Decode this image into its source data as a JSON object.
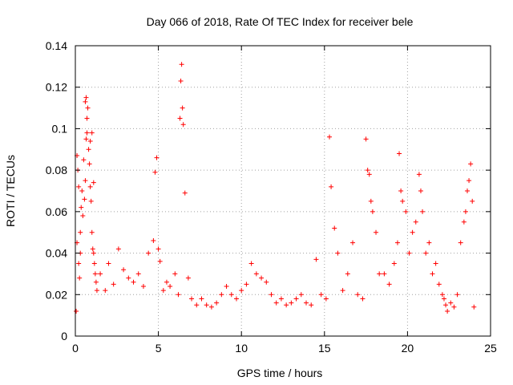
{
  "chart_data": {
    "type": "scatter",
    "title": "Day 066 of 2018, Rate Of TEC Index for receiver bele",
    "xlabel": "GPS time / hours",
    "ylabel": "ROTI / TECUs",
    "xlim": [
      0,
      25
    ],
    "ylim": [
      0,
      0.14
    ],
    "grid": true,
    "x_ticks": [
      0,
      5,
      10,
      15,
      20,
      25
    ],
    "x_tick_labels": [
      "0",
      "5",
      "10",
      "15",
      "20",
      "25"
    ],
    "y_ticks": [
      0,
      0.02,
      0.04,
      0.06,
      0.08,
      0.1,
      0.12,
      0.14
    ],
    "y_tick_labels": [
      "0",
      "0.02",
      "0.04",
      "0.06",
      "0.08",
      "0.1",
      "0.12",
      "0.14"
    ],
    "marker": "+",
    "color": "#ff0000",
    "series": [
      {
        "name": "ROTI",
        "x": [
          0.05,
          0.1,
          0.15,
          0.2,
          0.25,
          0.3,
          0.35,
          0.4,
          0.45,
          0.5,
          0.55,
          0.6,
          0.65,
          0.7,
          0.75,
          0.8,
          0.85,
          0.9,
          0.95,
          1.0,
          1.05,
          1.1,
          1.15,
          1.2,
          1.25,
          1.3,
          0.6,
          0.65,
          0.7,
          0.3,
          0.2,
          0.1,
          0.9,
          1.0,
          1.1,
          1.5,
          1.8,
          2.0,
          2.3,
          2.6,
          2.9,
          3.2,
          3.5,
          3.8,
          4.1,
          4.4,
          4.7,
          4.8,
          4.9,
          5.0,
          5.1,
          5.3,
          5.5,
          5.7,
          6.0,
          6.2,
          6.3,
          6.35,
          6.4,
          6.45,
          6.5,
          6.6,
          6.8,
          7.0,
          7.3,
          7.6,
          7.9,
          8.2,
          8.5,
          8.8,
          9.1,
          9.4,
          9.7,
          10.0,
          10.3,
          10.6,
          10.9,
          11.2,
          11.5,
          11.8,
          12.1,
          12.4,
          12.7,
          13.0,
          13.3,
          13.6,
          13.9,
          14.2,
          14.5,
          14.8,
          15.1,
          15.3,
          15.4,
          15.6,
          15.8,
          16.1,
          16.4,
          16.7,
          17.0,
          17.3,
          17.5,
          17.6,
          17.7,
          17.8,
          17.9,
          18.1,
          18.3,
          18.6,
          18.9,
          19.2,
          19.4,
          19.5,
          19.6,
          19.7,
          19.9,
          20.1,
          20.3,
          20.5,
          20.7,
          20.8,
          20.9,
          21.1,
          21.3,
          21.5,
          21.7,
          21.9,
          22.1,
          22.2,
          22.3,
          22.4,
          22.6,
          22.8,
          23.0,
          23.2,
          23.4,
          23.5,
          23.6,
          23.7,
          23.8,
          23.9,
          24.0
        ],
        "y": [
          0.012,
          0.045,
          0.08,
          0.035,
          0.028,
          0.05,
          0.062,
          0.07,
          0.058,
          0.085,
          0.066,
          0.075,
          0.095,
          0.105,
          0.11,
          0.09,
          0.083,
          0.072,
          0.065,
          0.05,
          0.042,
          0.04,
          0.035,
          0.03,
          0.026,
          0.022,
          0.113,
          0.115,
          0.098,
          0.04,
          0.072,
          0.087,
          0.094,
          0.098,
          0.074,
          0.03,
          0.022,
          0.035,
          0.025,
          0.042,
          0.032,
          0.028,
          0.026,
          0.03,
          0.024,
          0.04,
          0.046,
          0.079,
          0.086,
          0.042,
          0.036,
          0.022,
          0.026,
          0.024,
          0.03,
          0.02,
          0.105,
          0.123,
          0.131,
          0.11,
          0.102,
          0.069,
          0.028,
          0.018,
          0.015,
          0.018,
          0.015,
          0.014,
          0.016,
          0.02,
          0.024,
          0.02,
          0.018,
          0.022,
          0.025,
          0.035,
          0.03,
          0.028,
          0.026,
          0.02,
          0.016,
          0.018,
          0.015,
          0.016,
          0.018,
          0.02,
          0.016,
          0.015,
          0.037,
          0.02,
          0.018,
          0.096,
          0.072,
          0.052,
          0.04,
          0.022,
          0.03,
          0.045,
          0.02,
          0.018,
          0.095,
          0.08,
          0.078,
          0.065,
          0.06,
          0.05,
          0.03,
          0.03,
          0.025,
          0.035,
          0.045,
          0.088,
          0.07,
          0.065,
          0.06,
          0.04,
          0.05,
          0.055,
          0.078,
          0.07,
          0.06,
          0.04,
          0.045,
          0.03,
          0.035,
          0.025,
          0.02,
          0.018,
          0.015,
          0.012,
          0.016,
          0.014,
          0.02,
          0.045,
          0.055,
          0.06,
          0.07,
          0.075,
          0.083,
          0.065,
          0.014
        ]
      }
    ]
  }
}
